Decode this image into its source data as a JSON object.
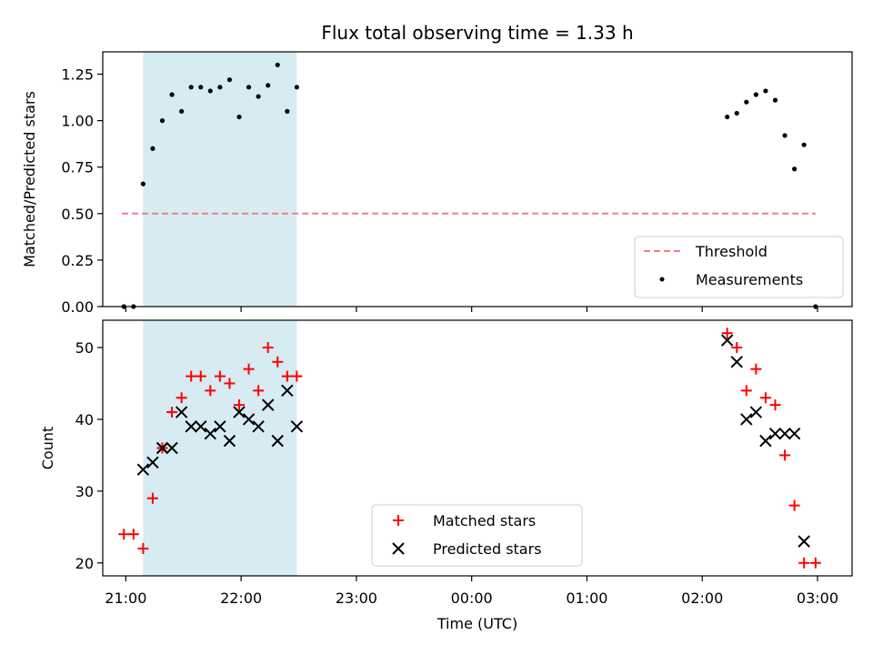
{
  "chart_data": [
    {
      "type": "scatter",
      "title": "Flux total observing time = 1.33 h",
      "ylabel": "Matched/Predicted stars",
      "xlabel": "",
      "ylim": [
        0,
        1.37
      ],
      "yticks": [
        "0.00",
        "0.25",
        "0.50",
        "0.75",
        "1.00",
        "1.25"
      ],
      "xlim": [
        "20:48",
        "03:18"
      ],
      "xticks": [
        "21:00",
        "22:00",
        "23:00",
        "00:00",
        "01:00",
        "02:00",
        "03:00"
      ],
      "shaded_span": [
        "21:09",
        "22:29"
      ],
      "shaded_color": "#add8e6",
      "threshold": {
        "name": "Threshold",
        "value": 0.5,
        "x_range": [
          "20:58",
          "02:59"
        ],
        "color": "#f08080",
        "style": "dashed"
      },
      "series": [
        {
          "name": "Measurements",
          "marker": "dot",
          "color": "#000000",
          "points": [
            [
              "20:59",
              0.0
            ],
            [
              "21:04",
              0.0
            ],
            [
              "21:09",
              0.66
            ],
            [
              "21:14",
              0.85
            ],
            [
              "21:19",
              1.0
            ],
            [
              "21:24",
              1.14
            ],
            [
              "21:29",
              1.05
            ],
            [
              "21:34",
              1.18
            ],
            [
              "21:39",
              1.18
            ],
            [
              "21:44",
              1.16
            ],
            [
              "21:49",
              1.18
            ],
            [
              "21:54",
              1.22
            ],
            [
              "21:59",
              1.02
            ],
            [
              "22:04",
              1.18
            ],
            [
              "22:09",
              1.13
            ],
            [
              "22:14",
              1.19
            ],
            [
              "22:19",
              1.3
            ],
            [
              "22:24",
              1.05
            ],
            [
              "22:29",
              1.18
            ],
            [
              "02:13",
              1.02
            ],
            [
              "02:18",
              1.04
            ],
            [
              "02:23",
              1.1
            ],
            [
              "02:28",
              1.14
            ],
            [
              "02:33",
              1.16
            ],
            [
              "02:38",
              1.11
            ],
            [
              "02:43",
              0.92
            ],
            [
              "02:48",
              0.74
            ],
            [
              "02:53",
              0.87
            ],
            [
              "02:59",
              0.0
            ]
          ]
        }
      ],
      "legend": {
        "placement": "lower-right",
        "entries": [
          "Threshold",
          "Measurements"
        ]
      }
    },
    {
      "type": "scatter",
      "title": "",
      "ylabel": "Count",
      "xlabel": "Time (UTC)",
      "ylim": [
        18.2,
        53.8
      ],
      "yticks": [
        "20",
        "30",
        "40",
        "50"
      ],
      "xlim": [
        "20:48",
        "03:18"
      ],
      "xticks": [
        "21:00",
        "22:00",
        "23:00",
        "00:00",
        "01:00",
        "02:00",
        "03:00"
      ],
      "shaded_span": [
        "21:09",
        "22:29"
      ],
      "shaded_color": "#add8e6",
      "series": [
        {
          "name": "Matched stars",
          "marker": "plus",
          "color": "#ff0000",
          "points": [
            [
              "20:59",
              24
            ],
            [
              "21:04",
              24
            ],
            [
              "21:09",
              22
            ],
            [
              "21:14",
              29
            ],
            [
              "21:19",
              36
            ],
            [
              "21:24",
              41
            ],
            [
              "21:29",
              43
            ],
            [
              "21:34",
              46
            ],
            [
              "21:39",
              46
            ],
            [
              "21:44",
              44
            ],
            [
              "21:49",
              46
            ],
            [
              "21:54",
              45
            ],
            [
              "21:59",
              42
            ],
            [
              "22:04",
              47
            ],
            [
              "22:09",
              44
            ],
            [
              "22:14",
              50
            ],
            [
              "22:19",
              48
            ],
            [
              "22:24",
              46
            ],
            [
              "22:29",
              46
            ],
            [
              "02:13",
              52
            ],
            [
              "02:18",
              50
            ],
            [
              "02:23",
              44
            ],
            [
              "02:28",
              47
            ],
            [
              "02:33",
              43
            ],
            [
              "02:38",
              42
            ],
            [
              "02:43",
              35
            ],
            [
              "02:48",
              28
            ],
            [
              "02:53",
              20
            ],
            [
              "02:59",
              20
            ]
          ]
        },
        {
          "name": "Predicted stars",
          "marker": "x",
          "color": "#000000",
          "points": [
            [
              "21:09",
              33
            ],
            [
              "21:14",
              34
            ],
            [
              "21:19",
              36
            ],
            [
              "21:24",
              36
            ],
            [
              "21:29",
              41
            ],
            [
              "21:34",
              39
            ],
            [
              "21:39",
              39
            ],
            [
              "21:44",
              38
            ],
            [
              "21:49",
              39
            ],
            [
              "21:54",
              37
            ],
            [
              "21:59",
              41
            ],
            [
              "22:04",
              40
            ],
            [
              "22:09",
              39
            ],
            [
              "22:14",
              42
            ],
            [
              "22:19",
              37
            ],
            [
              "22:24",
              44
            ],
            [
              "22:29",
              39
            ],
            [
              "02:13",
              51
            ],
            [
              "02:18",
              48
            ],
            [
              "02:23",
              40
            ],
            [
              "02:28",
              41
            ],
            [
              "02:33",
              37
            ],
            [
              "02:38",
              38
            ],
            [
              "02:43",
              38
            ],
            [
              "02:48",
              38
            ],
            [
              "02:53",
              23
            ]
          ]
        }
      ],
      "legend": {
        "placement": "lower-center",
        "entries": [
          "Matched stars",
          "Predicted stars"
        ]
      }
    }
  ]
}
